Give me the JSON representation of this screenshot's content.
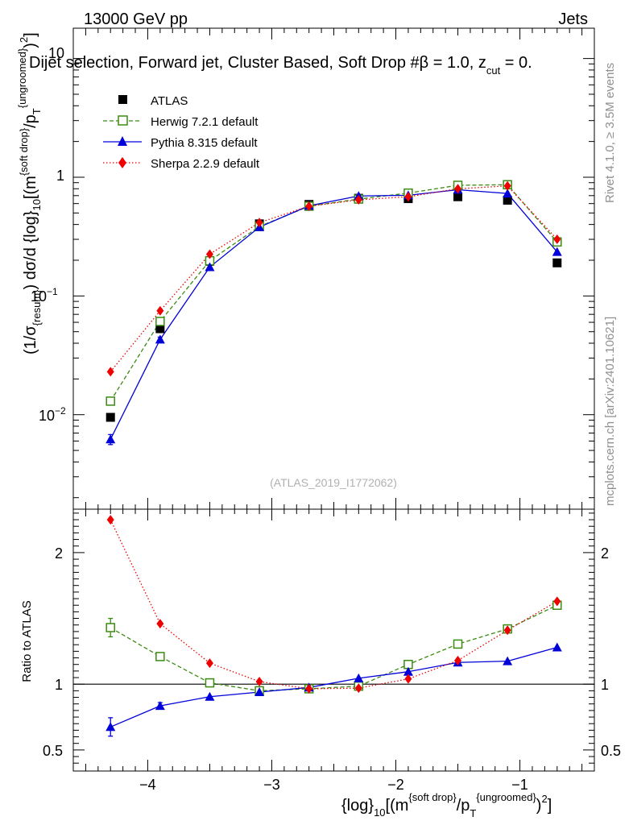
{
  "header": {
    "left": "13000 GeV pp",
    "right": "Jets",
    "title": "Dijet selection, Forward jet, Cluster Based, Soft Drop #beta = 1.0, z_cut = 0.",
    "title_main": "Dijet selection, Forward jet, Cluster Based, Soft Drop #",
    "title_beta": "β",
    "title_tail": " = 1.0, z",
    "title_sub": "cut",
    "title_end": " = 0."
  },
  "side": {
    "rivet": "Rivet 4.1.0, ≥ 3.5M events",
    "mcplots": "mcplots.cern.ch [arXiv:2401.10621]"
  },
  "watermark": "(ATLAS_2019_I1772062)",
  "chart_data": [
    {
      "type": "scatter",
      "panel": "main",
      "yscale": "log",
      "xlim": [
        -4.6,
        -0.4
      ],
      "ylim": [
        0.0016,
        18
      ],
      "ylabel": "(1/σ_{resum}) dσ/d {log}_10[(m^{soft drop}/p_T^{ungroomed})^2]",
      "ylabel_parts": [
        "(1/σ",
        "{resum}",
        ") dσ/d {log}",
        "10",
        "[(m",
        "{soft drop}",
        "/p",
        "T",
        "{ungroomed}",
        ")",
        "2",
        "]"
      ],
      "y_ticks": [
        0.01,
        0.1,
        1,
        10
      ],
      "y_tick_labels": {
        "m2": "10",
        "m2sup": "−2",
        "m1": "10",
        "m1sup": "−1",
        "zero": "1",
        "p1": "10"
      },
      "x": [
        -4.3,
        -3.9,
        -3.5,
        -3.1,
        -2.7,
        -2.3,
        -1.9,
        -1.5,
        -1.1,
        -0.7
      ],
      "series": [
        {
          "name": "ATLAS",
          "color": "#000000",
          "marker": "square-filled",
          "line": "none",
          "values": [
            0.0095,
            0.053,
            0.196,
            0.405,
            0.59,
            0.665,
            0.66,
            0.685,
            0.64,
            0.19
          ]
        },
        {
          "name": "Herwig 7.2.1 default",
          "color": "#3b8b12",
          "marker": "square-open",
          "line": "dashed",
          "values": [
            0.013,
            0.061,
            0.198,
            0.385,
            0.57,
            0.655,
            0.735,
            0.855,
            0.865,
            0.285
          ],
          "errors": [
            0.0008,
            0.003,
            0,
            0,
            0,
            0,
            0,
            0,
            0,
            0
          ]
        },
        {
          "name": "Pythia 8.315 default",
          "color": "#0000d8",
          "marker": "triangle",
          "line": "solid",
          "values": [
            0.0062,
            0.043,
            0.175,
            0.38,
            0.575,
            0.695,
            0.705,
            0.785,
            0.73,
            0.235
          ],
          "errors": [
            0.0006,
            0.002,
            0,
            0,
            0,
            0,
            0,
            0,
            0,
            0
          ]
        },
        {
          "name": "Sherpa 2.2.9 default",
          "color": "#ee0000",
          "marker": "diamond",
          "line": "dotted",
          "values": [
            0.023,
            0.075,
            0.225,
            0.415,
            0.57,
            0.645,
            0.685,
            0.8,
            0.845,
            0.3
          ]
        }
      ]
    },
    {
      "type": "scatter",
      "panel": "ratio",
      "xlim": [
        -4.6,
        -0.4
      ],
      "ylim": [
        0.34,
        2.33
      ],
      "ylabel": "Ratio to ATLAS",
      "xlabel": "{log}_10[(m^{soft drop}/p_T^{ungroomed})^2]",
      "xlabel_parts": [
        "{log}",
        "10",
        "[(m",
        "{soft drop}",
        "/p",
        "T",
        "{ungroomed}",
        ")",
        "2",
        "]"
      ],
      "y_ticks": [
        0.5,
        1,
        2
      ],
      "y_tick_labels": [
        "0.5",
        "1",
        "2"
      ],
      "x_ticks": [
        -4,
        -3,
        -2,
        -1
      ],
      "x_tick_labels": [
        "−4",
        "−3",
        "−2",
        "−1"
      ],
      "x": [
        -4.3,
        -3.9,
        -3.5,
        -3.1,
        -2.7,
        -2.3,
        -1.9,
        -1.5,
        -1.1,
        -0.7
      ],
      "series": [
        {
          "name": "Herwig 7.2.1 default",
          "color": "#3b8b12",
          "marker": "square-open",
          "line": "dashed",
          "values": [
            1.43,
            1.21,
            1.01,
            0.95,
            0.965,
            0.985,
            1.15,
            1.305,
            1.42,
            1.6
          ],
          "errors": [
            0.07,
            0,
            0,
            0,
            0,
            0,
            0,
            0,
            0,
            0
          ]
        },
        {
          "name": "Pythia 8.315 default",
          "color": "#0000d8",
          "marker": "triangle",
          "line": "solid",
          "values": [
            0.675,
            0.835,
            0.905,
            0.94,
            0.975,
            1.045,
            1.095,
            1.165,
            1.175,
            1.28
          ],
          "errors": [
            0.07,
            0.025,
            0,
            0,
            0,
            0,
            0,
            0,
            0,
            0
          ]
        },
        {
          "name": "Sherpa 2.2.9 default",
          "color": "#ee0000",
          "marker": "diamond",
          "line": "dotted",
          "values": [
            2.25,
            1.46,
            1.16,
            1.02,
            0.965,
            0.97,
            1.04,
            1.18,
            1.41,
            1.63
          ]
        }
      ]
    }
  ]
}
